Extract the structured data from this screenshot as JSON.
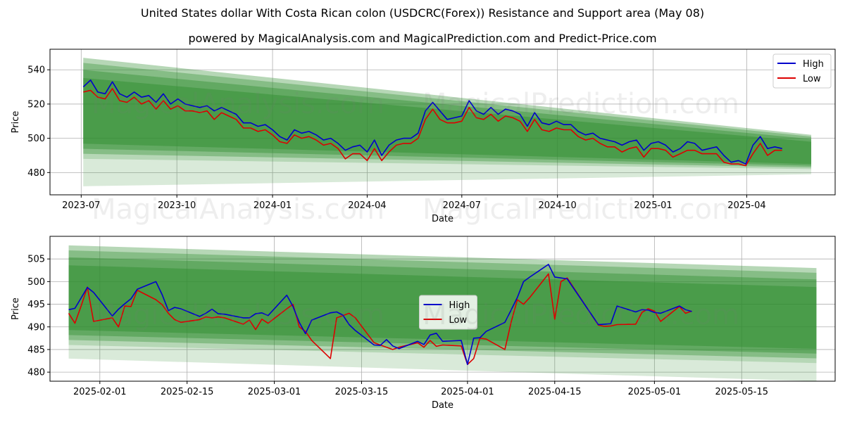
{
  "figure": {
    "title": "United States dollar With Costa Rican colon (USDCRC(Forex)) Resistance and Support area (May 08)",
    "subtitle": "powered by MagicalAnalysis.com and MagicalPrediction.com and Predict-Price.com",
    "watermarks": [
      "MagicalAnalysis.com",
      "MagicalPrediction.com"
    ]
  },
  "colors": {
    "high": "#0000cc",
    "low": "#dd0000",
    "band": "#2e8b2e"
  },
  "chart_data": [
    {
      "type": "line",
      "xlabel": "Date",
      "ylabel": "Price",
      "x_axis": "date",
      "xlim": [
        "2023-06-01",
        "2025-06-25"
      ],
      "ylim": [
        467,
        552
      ],
      "xticks": [
        "2023-07",
        "2023-10",
        "2024-01",
        "2024-04",
        "2024-07",
        "2024-10",
        "2025-01",
        "2025-04"
      ],
      "xtick_dates": [
        "2023-07-01",
        "2023-10-01",
        "2024-01-01",
        "2024-04-01",
        "2024-07-01",
        "2024-10-01",
        "2025-01-01",
        "2025-04-01"
      ],
      "yticks": [
        480,
        500,
        520,
        540
      ],
      "grid": true,
      "legend_position": "top-right",
      "band": {
        "start": "2023-07-03",
        "end": "2025-06-02",
        "resistance": [
          547,
          502
        ],
        "support": [
          488,
          482
        ],
        "outer_support": [
          472,
          479
        ]
      },
      "series": [
        {
          "name": "High",
          "x": [
            "2023-07-03",
            "2023-07-10",
            "2023-07-17",
            "2023-07-24",
            "2023-07-31",
            "2023-08-07",
            "2023-08-14",
            "2023-08-21",
            "2023-08-28",
            "2023-09-04",
            "2023-09-11",
            "2023-09-18",
            "2023-09-25",
            "2023-10-02",
            "2023-10-09",
            "2023-10-16",
            "2023-10-23",
            "2023-10-30",
            "2023-11-06",
            "2023-11-13",
            "2023-11-20",
            "2023-11-27",
            "2023-12-04",
            "2023-12-11",
            "2023-12-18",
            "2023-12-25",
            "2024-01-01",
            "2024-01-08",
            "2024-01-15",
            "2024-01-22",
            "2024-01-29",
            "2024-02-05",
            "2024-02-12",
            "2024-02-19",
            "2024-02-26",
            "2024-03-04",
            "2024-03-11",
            "2024-03-18",
            "2024-03-25",
            "2024-04-01",
            "2024-04-08",
            "2024-04-15",
            "2024-04-22",
            "2024-04-29",
            "2024-05-06",
            "2024-05-13",
            "2024-05-20",
            "2024-05-27",
            "2024-06-03",
            "2024-06-10",
            "2024-06-17",
            "2024-06-24",
            "2024-07-01",
            "2024-07-08",
            "2024-07-15",
            "2024-07-22",
            "2024-07-29",
            "2024-08-05",
            "2024-08-12",
            "2024-08-19",
            "2024-08-26",
            "2024-09-02",
            "2024-09-09",
            "2024-09-16",
            "2024-09-23",
            "2024-09-30",
            "2024-10-07",
            "2024-10-14",
            "2024-10-21",
            "2024-10-28",
            "2024-11-04",
            "2024-11-11",
            "2024-11-18",
            "2024-11-25",
            "2024-12-02",
            "2024-12-09",
            "2024-12-16",
            "2024-12-23",
            "2024-12-30",
            "2025-01-06",
            "2025-01-13",
            "2025-01-20",
            "2025-01-27",
            "2025-02-03",
            "2025-02-10",
            "2025-02-17",
            "2025-02-24",
            "2025-03-03",
            "2025-03-10",
            "2025-03-17",
            "2025-03-24",
            "2025-03-31",
            "2025-04-07",
            "2025-04-14",
            "2025-04-21",
            "2025-04-28",
            "2025-05-05"
          ],
          "values": [
            530,
            534,
            527,
            526,
            533,
            526,
            524,
            527,
            524,
            525,
            521,
            526,
            520,
            523,
            520,
            519,
            518,
            519,
            516,
            518,
            516,
            514,
            509,
            509,
            507,
            508,
            505,
            501,
            499,
            505,
            503,
            504,
            502,
            499,
            500,
            497,
            493,
            495,
            496,
            492,
            499,
            490,
            496,
            499,
            500,
            500,
            503,
            516,
            521,
            516,
            511,
            512,
            513,
            522,
            516,
            514,
            518,
            514,
            517,
            516,
            514,
            507,
            515,
            509,
            508,
            510,
            508,
            508,
            504,
            502,
            503,
            500,
            499,
            498,
            496,
            498,
            499,
            493,
            497,
            498,
            496,
            492,
            494,
            498,
            497,
            493,
            494,
            495,
            490,
            486,
            487,
            485,
            496,
            501,
            494,
            495,
            494
          ]
        },
        {
          "name": "Low",
          "x": [
            "2023-07-03",
            "2023-07-10",
            "2023-07-17",
            "2023-07-24",
            "2023-07-31",
            "2023-08-07",
            "2023-08-14",
            "2023-08-21",
            "2023-08-28",
            "2023-09-04",
            "2023-09-11",
            "2023-09-18",
            "2023-09-25",
            "2023-10-02",
            "2023-10-09",
            "2023-10-16",
            "2023-10-23",
            "2023-10-30",
            "2023-11-06",
            "2023-11-13",
            "2023-11-20",
            "2023-11-27",
            "2023-12-04",
            "2023-12-11",
            "2023-12-18",
            "2023-12-25",
            "2024-01-01",
            "2024-01-08",
            "2024-01-15",
            "2024-01-22",
            "2024-01-29",
            "2024-02-05",
            "2024-02-12",
            "2024-02-19",
            "2024-02-26",
            "2024-03-04",
            "2024-03-11",
            "2024-03-18",
            "2024-03-25",
            "2024-04-01",
            "2024-04-08",
            "2024-04-15",
            "2024-04-22",
            "2024-04-29",
            "2024-05-06",
            "2024-05-13",
            "2024-05-20",
            "2024-05-27",
            "2024-06-03",
            "2024-06-10",
            "2024-06-17",
            "2024-06-24",
            "2024-07-01",
            "2024-07-08",
            "2024-07-15",
            "2024-07-22",
            "2024-07-29",
            "2024-08-05",
            "2024-08-12",
            "2024-08-19",
            "2024-08-26",
            "2024-09-02",
            "2024-09-09",
            "2024-09-16",
            "2024-09-23",
            "2024-09-30",
            "2024-10-07",
            "2024-10-14",
            "2024-10-21",
            "2024-10-28",
            "2024-11-04",
            "2024-11-11",
            "2024-11-18",
            "2024-11-25",
            "2024-12-02",
            "2024-12-09",
            "2024-12-16",
            "2024-12-23",
            "2024-12-30",
            "2025-01-06",
            "2025-01-13",
            "2025-01-20",
            "2025-01-27",
            "2025-02-03",
            "2025-02-10",
            "2025-02-17",
            "2025-02-24",
            "2025-03-03",
            "2025-03-10",
            "2025-03-17",
            "2025-03-24",
            "2025-03-31",
            "2025-04-07",
            "2025-04-14",
            "2025-04-21",
            "2025-04-28",
            "2025-05-05"
          ],
          "values": [
            527,
            528,
            524,
            523,
            529,
            522,
            521,
            524,
            520,
            522,
            517,
            522,
            517,
            519,
            516,
            516,
            515,
            516,
            511,
            515,
            513,
            511,
            506,
            506,
            504,
            505,
            502,
            498,
            497,
            502,
            500,
            501,
            499,
            496,
            497,
            494,
            488,
            491,
            491,
            487,
            494,
            487,
            492,
            496,
            497,
            497,
            500,
            511,
            517,
            511,
            509,
            509,
            510,
            518,
            512,
            511,
            514,
            510,
            513,
            512,
            510,
            504,
            511,
            505,
            504,
            506,
            505,
            505,
            501,
            499,
            500,
            497,
            495,
            495,
            492,
            494,
            495,
            489,
            494,
            494,
            493,
            489,
            491,
            493,
            493,
            491,
            491,
            491,
            486,
            485,
            485,
            484,
            491,
            497,
            490,
            493,
            493
          ]
        }
      ]
    },
    {
      "type": "line",
      "xlabel": "Date",
      "ylabel": "Price",
      "x_axis": "date",
      "xlim": [
        "2025-01-24",
        "2025-05-30"
      ],
      "ylim": [
        478,
        510
      ],
      "xticks": [
        "2025-02-01",
        "2025-02-15",
        "2025-03-01",
        "2025-03-15",
        "2025-04-01",
        "2025-04-15",
        "2025-05-01",
        "2025-05-15"
      ],
      "xtick_dates": [
        "2025-02-01",
        "2025-02-15",
        "2025-03-01",
        "2025-03-15",
        "2025-04-01",
        "2025-04-15",
        "2025-05-01",
        "2025-05-15"
      ],
      "yticks": [
        480,
        485,
        490,
        495,
        500,
        505
      ],
      "grid": true,
      "legend_position": "center",
      "band": {
        "start": "2025-01-27",
        "end": "2025-05-27",
        "resistance": [
          508,
          503
        ],
        "support": [
          486,
          482
        ],
        "outer_support": [
          483,
          478
        ]
      },
      "series": [
        {
          "name": "High",
          "x": [
            "2025-01-27",
            "2025-01-28",
            "2025-01-29",
            "2025-01-30",
            "2025-01-31",
            "2025-02-03",
            "2025-02-04",
            "2025-02-05",
            "2025-02-06",
            "2025-02-07",
            "2025-02-10",
            "2025-02-11",
            "2025-02-12",
            "2025-02-13",
            "2025-02-14",
            "2025-02-17",
            "2025-02-18",
            "2025-02-19",
            "2025-02-20",
            "2025-02-21",
            "2025-02-24",
            "2025-02-25",
            "2025-02-26",
            "2025-02-27",
            "2025-02-28",
            "2025-03-03",
            "2025-03-04",
            "2025-03-05",
            "2025-03-06",
            "2025-03-07",
            "2025-03-10",
            "2025-03-11",
            "2025-03-12",
            "2025-03-13",
            "2025-03-14",
            "2025-03-17",
            "2025-03-18",
            "2025-03-19",
            "2025-03-20",
            "2025-03-21",
            "2025-03-24",
            "2025-03-25",
            "2025-03-26",
            "2025-03-27",
            "2025-03-28",
            "2025-03-31",
            "2025-04-01",
            "2025-04-02",
            "2025-04-03",
            "2025-04-04",
            "2025-04-07",
            "2025-04-08",
            "2025-04-09",
            "2025-04-10",
            "2025-04-11",
            "2025-04-14",
            "2025-04-15",
            "2025-04-16",
            "2025-04-17",
            "2025-04-22",
            "2025-04-23",
            "2025-04-24",
            "2025-04-25",
            "2025-04-28",
            "2025-04-29",
            "2025-04-30",
            "2025-05-01",
            "2025-05-02",
            "2025-05-05",
            "2025-05-06",
            "2025-05-07"
          ],
          "values": [
            493.8,
            494.1,
            496.4,
            498.7,
            497.6,
            492.4,
            493.9,
            495.1,
            496.2,
            498.3,
            500.0,
            497.1,
            493.6,
            494.3,
            494.0,
            492.3,
            493.0,
            493.9,
            492.9,
            492.8,
            492.0,
            492.0,
            492.9,
            493.1,
            492.5,
            497.0,
            494.5,
            491.0,
            488.5,
            491.5,
            493.1,
            493.3,
            492.6,
            490.5,
            489.2,
            486.0,
            485.9,
            487.2,
            485.8,
            485.2,
            486.8,
            486.1,
            488.2,
            488.6,
            486.8,
            487.0,
            481.7,
            487.5,
            487.6,
            489.0,
            491.0,
            493.7,
            496.5,
            500.0,
            501.0,
            503.8,
            501.0,
            500.8,
            500.6,
            490.5,
            490.6,
            490.7,
            494.6,
            493.3,
            493.8,
            493.7,
            493.2,
            493.0,
            494.6,
            493.8,
            493.4
          ]
        },
        {
          "name": "Low",
          "x": [
            "2025-01-27",
            "2025-01-28",
            "2025-01-29",
            "2025-01-30",
            "2025-01-31",
            "2025-02-03",
            "2025-02-04",
            "2025-02-05",
            "2025-02-06",
            "2025-02-07",
            "2025-02-10",
            "2025-02-11",
            "2025-02-12",
            "2025-02-13",
            "2025-02-14",
            "2025-02-17",
            "2025-02-18",
            "2025-02-19",
            "2025-02-20",
            "2025-02-21",
            "2025-02-24",
            "2025-02-25",
            "2025-02-26",
            "2025-02-27",
            "2025-02-28",
            "2025-03-03",
            "2025-03-04",
            "2025-03-05",
            "2025-03-06",
            "2025-03-07",
            "2025-03-10",
            "2025-03-11",
            "2025-03-12",
            "2025-03-13",
            "2025-03-14",
            "2025-03-17",
            "2025-03-18",
            "2025-03-19",
            "2025-03-20",
            "2025-03-21",
            "2025-03-24",
            "2025-03-25",
            "2025-03-26",
            "2025-03-27",
            "2025-03-28",
            "2025-03-31",
            "2025-04-01",
            "2025-04-02",
            "2025-04-03",
            "2025-04-04",
            "2025-04-07",
            "2025-04-08",
            "2025-04-09",
            "2025-04-10",
            "2025-04-11",
            "2025-04-14",
            "2025-04-15",
            "2025-04-16",
            "2025-04-17",
            "2025-04-22",
            "2025-04-23",
            "2025-04-24",
            "2025-04-25",
            "2025-04-28",
            "2025-04-29",
            "2025-04-30",
            "2025-05-01",
            "2025-05-02",
            "2025-05-05",
            "2025-05-06",
            "2025-05-07"
          ],
          "values": [
            493.0,
            490.8,
            494.6,
            498.8,
            491.2,
            492.0,
            490.0,
            494.6,
            494.5,
            498.1,
            496.0,
            494.9,
            493.0,
            491.6,
            491.0,
            491.6,
            492.2,
            492.0,
            492.2,
            492.0,
            490.6,
            491.5,
            489.4,
            491.7,
            490.8,
            494.0,
            495.0,
            490.0,
            489.0,
            487.0,
            483.0,
            492.0,
            492.5,
            493.0,
            492.0,
            486.5,
            486.0,
            485.5,
            485.0,
            485.5,
            486.5,
            485.5,
            487.0,
            485.7,
            486.0,
            485.8,
            481.7,
            483.0,
            487.5,
            487.3,
            485.0,
            491.0,
            496.0,
            495.0,
            496.5,
            501.7,
            491.7,
            500.0,
            500.8,
            490.4,
            490.1,
            490.2,
            490.5,
            490.6,
            493.2,
            494.0,
            493.5,
            491.2,
            494.5,
            493.0,
            493.5
          ]
        }
      ]
    }
  ]
}
